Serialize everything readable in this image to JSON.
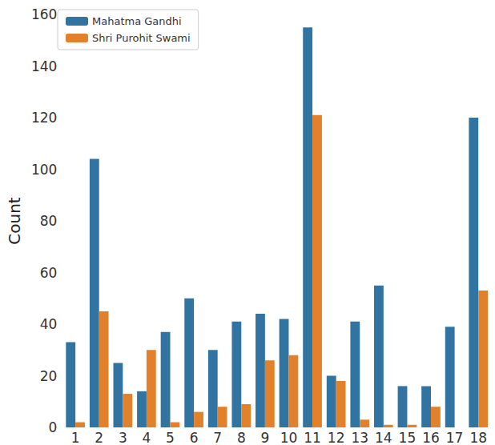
{
  "chart_data": {
    "type": "bar",
    "y_label": "Count",
    "categories": [
      "1",
      "2",
      "3",
      "4",
      "5",
      "6",
      "7",
      "8",
      "9",
      "10",
      "11",
      "12",
      "13",
      "14",
      "15",
      "16",
      "17",
      "18"
    ],
    "series": [
      {
        "name": "Mahatma Gandhi",
        "color": "#3274a1",
        "values": [
          33,
          104,
          25,
          14,
          37,
          50,
          30,
          41,
          44,
          42,
          155,
          20,
          41,
          55,
          16,
          16,
          39,
          120
        ]
      },
      {
        "name": "Shri Purohit Swami",
        "color": "#e1812c",
        "values": [
          2,
          45,
          13,
          30,
          2,
          6,
          8,
          9,
          26,
          28,
          121,
          18,
          3,
          1,
          1,
          8,
          0,
          53
        ]
      }
    ],
    "ylim": [
      0,
      160
    ],
    "yticks": [
      0,
      20,
      40,
      60,
      80,
      100,
      120,
      140,
      160
    ],
    "grid": false,
    "legend": "upper left"
  }
}
